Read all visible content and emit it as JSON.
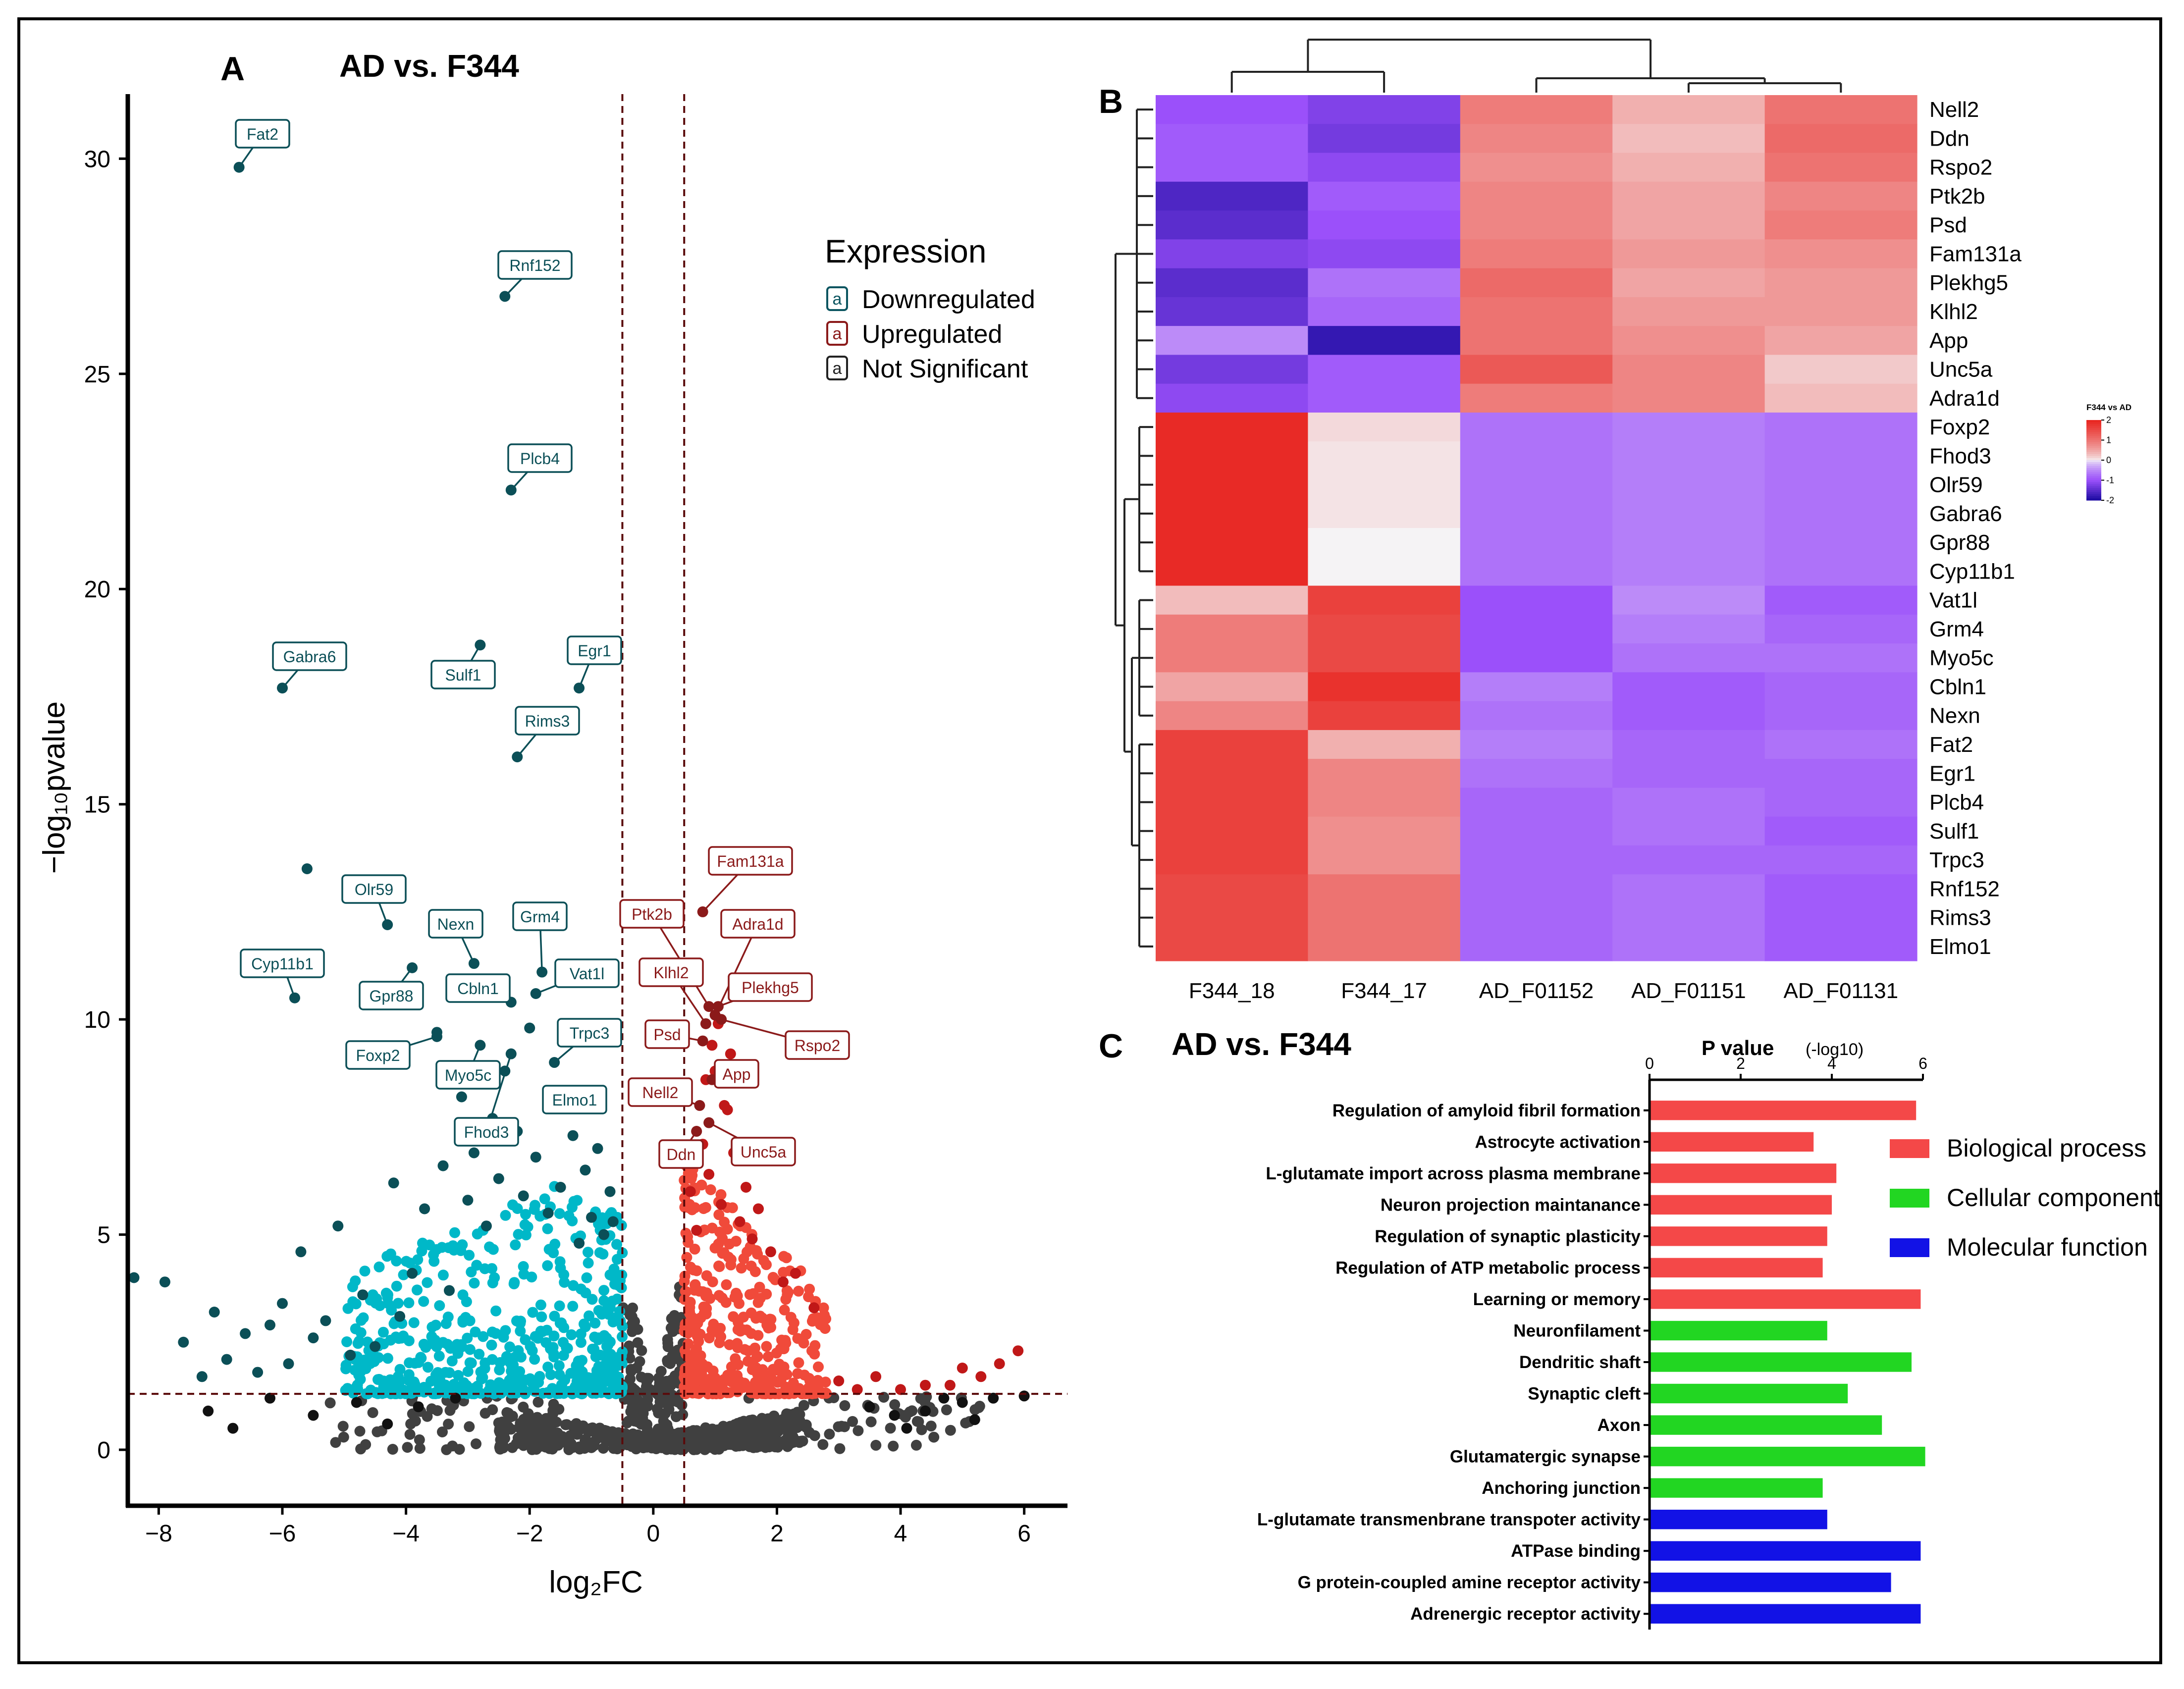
{
  "panels": [
    {
      "letter": "A",
      "title": "AD vs. F344"
    },
    {
      "letter": "B",
      "title": ""
    },
    {
      "letter": "C",
      "title": "AD vs. F344"
    }
  ],
  "chart_data": [
    {
      "type": "scatter",
      "panel": "A",
      "title": "AD vs. F344",
      "xlabel": "log₂FC",
      "ylabel": "−log₁₀pvalue",
      "xlim": [
        -8.5,
        6.7
      ],
      "ylim": [
        -1.3,
        31.5
      ],
      "xticks": [
        -8,
        -6,
        -4,
        -2,
        0,
        2,
        4,
        6
      ],
      "yticks": [
        0,
        5,
        10,
        15,
        20,
        25,
        30
      ],
      "thresholds": {
        "log2fc": [
          -0.5,
          0.5
        ],
        "neg_log10_p": 1.3
      },
      "legend": {
        "title": "Expression",
        "items": [
          {
            "key": "a",
            "label": "Downregulated",
            "color": "#0b5560"
          },
          {
            "key": "a",
            "label": "Upregulated",
            "color": "#8b1a1a"
          },
          {
            "key": "a",
            "label": "Not Significant",
            "color": "#222222"
          }
        ]
      },
      "colors": {
        "down": "#00b8c8",
        "down_dark": "#0b4f57",
        "up": "#f04a3a",
        "up_dark": "#c01818",
        "ns": "#404040"
      },
      "labeled_points": [
        {
          "gene": "Fat2",
          "x": -6.7,
          "y": 29.8,
          "dir": "down"
        },
        {
          "gene": "Rnf152",
          "x": -2.4,
          "y": 26.8,
          "dir": "down"
        },
        {
          "gene": "Plcb4",
          "x": -2.3,
          "y": 22.3,
          "dir": "down"
        },
        {
          "gene": "Gabra6",
          "x": -6.0,
          "y": 17.7,
          "dir": "down"
        },
        {
          "gene": "Sulf1",
          "x": -2.8,
          "y": 18.7,
          "dir": "down"
        },
        {
          "gene": "Egr1",
          "x": -1.2,
          "y": 17.7,
          "dir": "down"
        },
        {
          "gene": "Rims3",
          "x": -2.2,
          "y": 16.1,
          "dir": "down"
        },
        {
          "gene": "Olr59",
          "x": -4.3,
          "y": 12.2,
          "dir": "down"
        },
        {
          "gene": "Nexn",
          "x": -2.9,
          "y": 11.3,
          "dir": "down"
        },
        {
          "gene": "Grm4",
          "x": -1.8,
          "y": 11.1,
          "dir": "down"
        },
        {
          "gene": "Cyp11b1",
          "x": -5.8,
          "y": 10.5,
          "dir": "down"
        },
        {
          "gene": "Gpr88",
          "x": -3.9,
          "y": 11.2,
          "dir": "down"
        },
        {
          "gene": "Cbln1",
          "x": -2.3,
          "y": 10.4,
          "dir": "down"
        },
        {
          "gene": "Vat1l",
          "x": -1.9,
          "y": 10.6,
          "dir": "down"
        },
        {
          "gene": "Trpc3",
          "x": -1.6,
          "y": 9.0,
          "dir": "down"
        },
        {
          "gene": "Foxp2",
          "x": -3.5,
          "y": 9.6,
          "dir": "down"
        },
        {
          "gene": "Myo5c",
          "x": -2.8,
          "y": 9.4,
          "dir": "down"
        },
        {
          "gene": "Elmo1",
          "x": -1.0,
          "y": 8.0,
          "dir": "down"
        },
        {
          "gene": "Fhod3",
          "x": -2.3,
          "y": 9.2,
          "dir": "down"
        },
        {
          "gene": "Fam131a",
          "x": 0.8,
          "y": 12.5,
          "dir": "up"
        },
        {
          "gene": "Ptk2b",
          "x": 0.9,
          "y": 10.3,
          "dir": "up"
        },
        {
          "gene": "Adra1d",
          "x": 1.0,
          "y": 10.1,
          "dir": "up"
        },
        {
          "gene": "Klhl2",
          "x": 0.85,
          "y": 9.9,
          "dir": "up"
        },
        {
          "gene": "Plekhg5",
          "x": 1.05,
          "y": 10.3,
          "dir": "up"
        },
        {
          "gene": "Rspo2",
          "x": 1.1,
          "y": 10.0,
          "dir": "up"
        },
        {
          "gene": "Psd",
          "x": 0.8,
          "y": 9.5,
          "dir": "up"
        },
        {
          "gene": "App",
          "x": 0.95,
          "y": 8.6,
          "dir": "up"
        },
        {
          "gene": "Nell2",
          "x": 0.75,
          "y": 8.0,
          "dir": "up"
        },
        {
          "gene": "Ddn",
          "x": 0.7,
          "y": 7.4,
          "dir": "up"
        },
        {
          "gene": "Unc5a",
          "x": 0.9,
          "y": 7.6,
          "dir": "up"
        }
      ]
    },
    {
      "type": "heatmap",
      "panel": "B",
      "columns": [
        "F344_18",
        "F344_17",
        "AD_F01152",
        "AD_F01151",
        "AD_F01131"
      ],
      "rows": [
        "Nell2",
        "Ddn",
        "Rspo2",
        "Ptk2b",
        "Psd",
        "Fam131a",
        "Plekhg5",
        "Klhl2",
        "App",
        "Unc5a",
        "Adra1d",
        "Foxp2",
        "Fhod3",
        "Olr59",
        "Gabra6",
        "Gpr88",
        "Cyp11b1",
        "Vat1l",
        "Grm4",
        "Myo5c",
        "Cbln1",
        "Nexn",
        "Fat2",
        "Egr1",
        "Plcb4",
        "Sulf1",
        "Trpc3",
        "Rnf152",
        "Rims3",
        "Elmo1"
      ],
      "values": [
        [
          -1.0,
          -1.2,
          0.9,
          0.4,
          1.0
        ],
        [
          -0.9,
          -1.3,
          0.8,
          0.3,
          1.1
        ],
        [
          -0.9,
          -1.1,
          0.7,
          0.4,
          1.0
        ],
        [
          -1.6,
          -0.9,
          0.8,
          0.5,
          0.8
        ],
        [
          -1.5,
          -1.0,
          0.8,
          0.5,
          0.9
        ],
        [
          -1.2,
          -1.1,
          0.9,
          0.6,
          0.7
        ],
        [
          -1.5,
          -0.7,
          1.1,
          0.5,
          0.6
        ],
        [
          -1.4,
          -0.8,
          1.0,
          0.6,
          0.6
        ],
        [
          -0.5,
          -1.8,
          1.0,
          0.7,
          0.5
        ],
        [
          -1.3,
          -0.9,
          1.3,
          0.8,
          0.2
        ],
        [
          -1.1,
          -0.9,
          0.9,
          0.8,
          0.3
        ],
        [
          1.9,
          0.1,
          -0.7,
          -0.6,
          -0.7
        ],
        [
          1.9,
          0.05,
          -0.7,
          -0.6,
          -0.7
        ],
        [
          1.9,
          0.05,
          -0.7,
          -0.6,
          -0.7
        ],
        [
          1.9,
          0.05,
          -0.7,
          -0.6,
          -0.7
        ],
        [
          1.9,
          0.0,
          -0.7,
          -0.6,
          -0.7
        ],
        [
          1.9,
          0.0,
          -0.7,
          -0.6,
          -0.7
        ],
        [
          0.3,
          1.6,
          -1.0,
          -0.5,
          -0.9
        ],
        [
          0.9,
          1.5,
          -1.0,
          -0.6,
          -0.8
        ],
        [
          0.9,
          1.5,
          -1.0,
          -0.7,
          -0.7
        ],
        [
          0.5,
          1.8,
          -0.6,
          -0.9,
          -0.8
        ],
        [
          0.8,
          1.6,
          -0.7,
          -0.9,
          -0.8
        ],
        [
          1.6,
          0.4,
          -0.6,
          -0.8,
          -0.7
        ],
        [
          1.6,
          0.8,
          -0.7,
          -0.8,
          -0.8
        ],
        [
          1.6,
          0.8,
          -0.8,
          -0.7,
          -0.8
        ],
        [
          1.6,
          0.7,
          -0.8,
          -0.7,
          -0.9
        ],
        [
          1.6,
          0.7,
          -0.8,
          -0.8,
          -0.8
        ],
        [
          1.5,
          1.0,
          -0.8,
          -0.7,
          -0.9
        ],
        [
          1.5,
          1.0,
          -0.8,
          -0.7,
          -0.9
        ],
        [
          1.5,
          1.0,
          -0.8,
          -0.7,
          -0.9
        ]
      ],
      "legend": {
        "title": "F344 vs AD",
        "ticks": [
          2,
          1,
          0,
          -1,
          -2
        ]
      },
      "colors": {
        "high": "#e8231e",
        "mid": "#f5f3f5",
        "low": "#1a0aa0"
      }
    },
    {
      "type": "bar",
      "orientation": "horizontal",
      "panel": "C",
      "title": "AD vs. F344",
      "xlabel_main": "P value",
      "xlabel_sub": "(-log10)",
      "xlim": [
        0,
        6
      ],
      "xticks": [
        0,
        2,
        4,
        6
      ],
      "categories": [
        "Regulation of amyloid fibril formation",
        "Astrocyte activation",
        "L-glutamate import across plasma membrane",
        "Neuron projection maintanance",
        "Regulation of synaptic plasticity",
        "Regulation of ATP metabolic process",
        "Learning or memory",
        "Neuronfilament",
        "Dendritic shaft",
        "Synaptic cleft",
        "Axon",
        "Glutamatergic synapse",
        "Anchoring junction",
        "L-glutamate transmenbrane transpoter activity",
        "ATPase binding",
        "G protein-coupled amine receptor activity",
        "Adrenergic receptor activity"
      ],
      "values": [
        5.85,
        3.6,
        4.1,
        4.0,
        3.9,
        3.8,
        5.95,
        3.9,
        5.75,
        4.35,
        5.1,
        6.05,
        3.8,
        3.9,
        5.95,
        5.3,
        5.95
      ],
      "groups": [
        "Biological process",
        "Biological process",
        "Biological process",
        "Biological process",
        "Biological process",
        "Biological process",
        "Biological process",
        "Cellular component",
        "Cellular component",
        "Cellular component",
        "Cellular component",
        "Cellular component",
        "Cellular component",
        "Molecular function",
        "Molecular function",
        "Molecular function",
        "Molecular function"
      ],
      "legend": [
        {
          "label": "Biological process",
          "color": "#f44848"
        },
        {
          "label": "Cellular component",
          "color": "#22d622"
        },
        {
          "label": "Molecular function",
          "color": "#1212e6"
        }
      ]
    }
  ]
}
